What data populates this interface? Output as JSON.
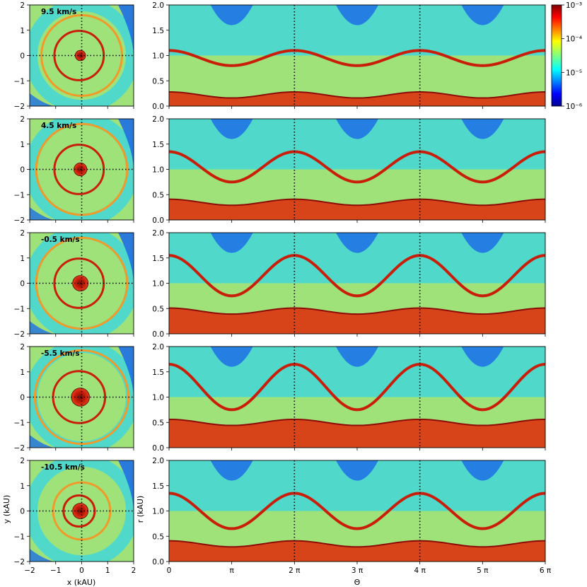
{
  "chart_data": {
    "type": "heatmap",
    "panel_labels": [
      "9.5 km/s",
      "4.5 km/s",
      "-0.5 km/s",
      "-5.5 km/s",
      "-10.5 km/s"
    ],
    "left_panels": {
      "xlabel": "x (kAU)",
      "ylabel": "y (kAU)",
      "xlim": [
        -2,
        2
      ],
      "ylim": [
        -2,
        2
      ],
      "xticks": [
        "−2",
        "−1",
        "0",
        "1",
        "2"
      ],
      "yticks": [
        "−2",
        "−1",
        "0",
        "1",
        "2"
      ],
      "ring_radius_kau": [
        [
          0.95,
          1.55,
          0.2
        ],
        [
          0.95,
          1.75,
          0.25
        ],
        [
          0.95,
          1.75,
          0.3
        ],
        [
          1.0,
          1.8,
          0.35
        ],
        [
          0.6,
          1.1,
          0.3
        ]
      ]
    },
    "right_panels": {
      "xlabel": "Θ",
      "ylabel": "r (kAU)",
      "xlim": [
        0,
        6
      ],
      "ylim": [
        0,
        2.0
      ],
      "xticks": [
        "0",
        "π",
        "2 π",
        "3 π",
        "4 π",
        "5 π",
        "6 π"
      ],
      "yticks": [
        "0.0",
        "0.5",
        "1.0",
        "1.5",
        "2.0"
      ],
      "dotted_lines_at_theta_over_pi": [
        2,
        4
      ]
    },
    "colorbar": {
      "scale": "log",
      "range": [
        1e-06,
        0.001
      ],
      "ticks": [
        "10⁻⁶",
        "10⁻⁵",
        "10⁻⁴",
        "10⁻³"
      ],
      "colormap": "jet"
    }
  },
  "colors": {
    "background_field": "#9fe27a",
    "cyan": "#35d6e6",
    "blue": "#1d6fe6",
    "orange": "#f09a2a",
    "red": "#c81e0a"
  }
}
